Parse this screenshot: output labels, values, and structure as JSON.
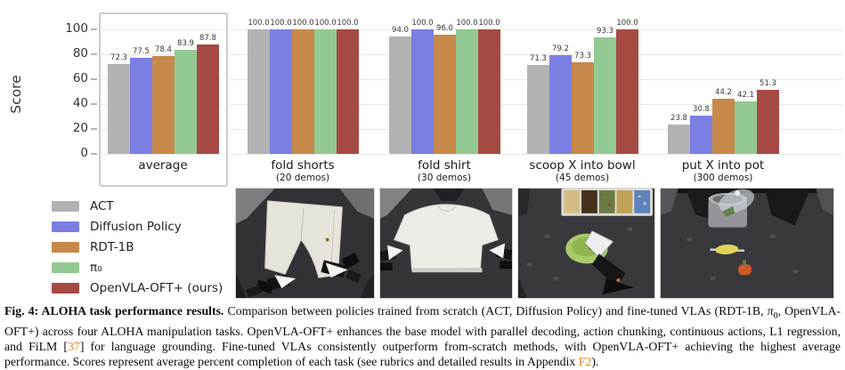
{
  "chart_data": {
    "type": "bar",
    "title": "",
    "xlabel": "",
    "ylabel": "Score",
    "ylim": [
      0,
      100
    ],
    "yticks": [
      0,
      20,
      40,
      60,
      80,
      100
    ],
    "grid": true,
    "legend_position": "bottom-left",
    "series": [
      {
        "name": "ACT",
        "color": "#b3b3b3"
      },
      {
        "name": "Diffusion Policy",
        "color": "#7b7fe2"
      },
      {
        "name": "RDT-1B",
        "color": "#c6894a"
      },
      {
        "name": "π₀",
        "color": "#93c993"
      },
      {
        "name": "OpenVLA-OFT+ (ours)",
        "color": "#a64a44"
      }
    ],
    "groups": [
      {
        "label": "average",
        "demos": "",
        "values": [
          72.3,
          77.5,
          78.4,
          83.9,
          87.8
        ],
        "highlighted": true
      },
      {
        "label": "fold shorts",
        "demos": "(20 demos)",
        "values": [
          100.0,
          100.0,
          100.0,
          100.0,
          100.0
        ]
      },
      {
        "label": "fold shirt",
        "demos": "(30 demos)",
        "values": [
          94.0,
          100.0,
          96.0,
          100.0,
          100.0
        ]
      },
      {
        "label": "scoop X into bowl",
        "demos": "(45 demos)",
        "values": [
          71.3,
          79.2,
          73.3,
          93.3,
          100.0
        ]
      },
      {
        "label": "put X into pot",
        "demos": "(300 demos)",
        "values": [
          23.8,
          30.8,
          44.2,
          42.1,
          51.3
        ]
      }
    ]
  },
  "colors": {
    "citation": "#e8801f",
    "grid": "#e8e8e8",
    "highlight_box_border": "#cbcbcb"
  },
  "caption": {
    "bold": "Fig. 4: ALOHA task performance results.",
    "part1": " Comparison between policies trained from scratch (ACT, Diffusion Policy) and fine-tuned VLAs (RDT-1B, ",
    "pi": "π",
    "pi_sub": "0",
    "part2": ", OpenVLA-OFT+) across four ALOHA manipulation tasks. OpenVLA-OFT+ enhances the base model with parallel decoding, action chunking, continuous actions, L1 regression, and FiLM [",
    "cite1": "37",
    "part3": "] for language grounding. Fine-tuned VLAs consistently outperform from-scratch methods, with OpenVLA-OFT+ achieving the highest average performance. Scores represent average percent completion of each task (see rubrics and detailed results in Appendix ",
    "cite2": "F2",
    "part4": ")."
  }
}
